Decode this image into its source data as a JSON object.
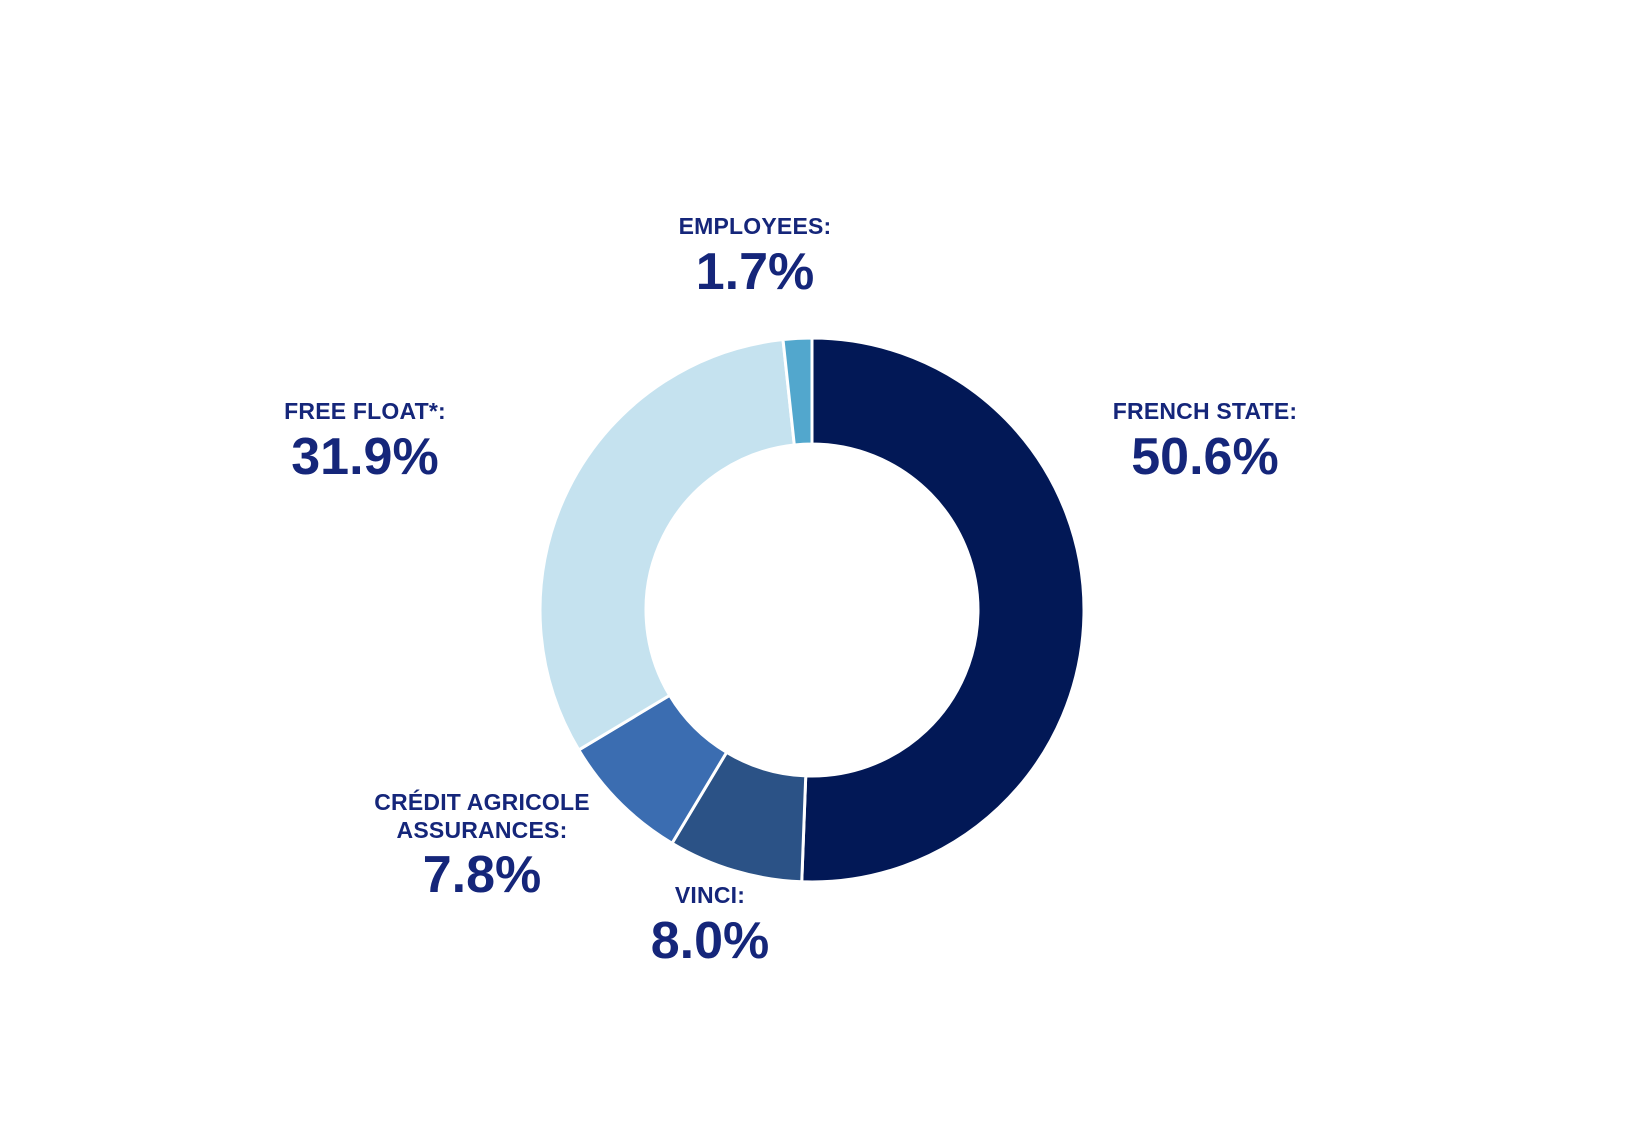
{
  "chart_data": {
    "type": "pie",
    "variant": "donut",
    "slices": [
      {
        "label": "FRENCH STATE:",
        "value": 50.6,
        "value_label": "50.6%",
        "color": "#021856"
      },
      {
        "label": "VINCI:",
        "value": 8.0,
        "value_label": "8.0%",
        "color": "#2b5286"
      },
      {
        "label": "CRÉDIT AGRICOLE ASSURANCES:",
        "value": 7.8,
        "value_label": "7.8%",
        "color": "#3b6db1"
      },
      {
        "label": "FREE FLOAT*:",
        "value": 31.9,
        "value_label": "31.9%",
        "color": "#c5e2ef"
      },
      {
        "label": "EMPLOYEES:",
        "value": 1.7,
        "value_label": "1.7%",
        "color": "#52a7cd"
      }
    ],
    "start": "12 o'clock",
    "direction": "clockwise",
    "label_color": "#15267a"
  }
}
